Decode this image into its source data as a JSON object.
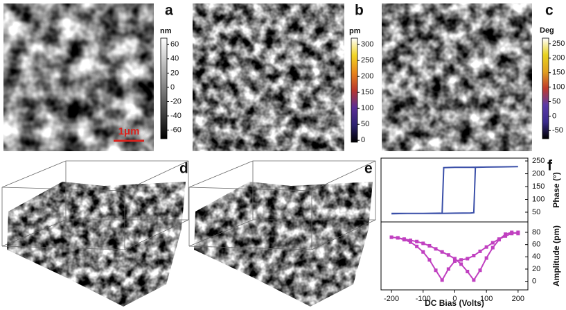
{
  "chart_data": [
    {
      "type": "heatmap",
      "label": "a",
      "colorbar_label": "nm",
      "clim": [
        -72,
        69
      ],
      "cticks": [
        60,
        40,
        20,
        0,
        -20,
        -40,
        -60
      ],
      "colormap": [
        "#000000",
        "#ffffff"
      ],
      "scale_bar": "1μm",
      "scale_color": "#d8231e"
    },
    {
      "type": "heatmap",
      "label": "b",
      "colorbar_label": "pm",
      "clim": [
        -6,
        320
      ],
      "cticks": [
        300,
        250,
        200,
        150,
        100,
        50,
        0
      ],
      "colormap": [
        "#000000",
        "#2c2170",
        "#5a2d96",
        "#b8362c",
        "#e8841a",
        "#f2d522",
        "#ffffff"
      ]
    },
    {
      "type": "heatmap",
      "label": "c",
      "colorbar_label": "Deg",
      "clim": [
        -78,
        269
      ],
      "cticks": [
        250,
        200,
        150,
        100,
        50,
        0,
        -50
      ],
      "colormap": [
        "#000000",
        "#3a2a8c",
        "#5b3aa8",
        "#c0392b",
        "#e0a020",
        "#e8d21e",
        "#ffffff"
      ]
    },
    {
      "type": "surface",
      "label": "d",
      "colormap": [
        "#1a1240",
        "#5a2d96",
        "#b8362c",
        "#e8841a",
        "#f2d522",
        "#ffffff"
      ]
    },
    {
      "type": "surface",
      "label": "e",
      "colormap": [
        "#1a1240",
        "#4a2f9a",
        "#7a5a40",
        "#d8c020",
        "#f0e040",
        "#fff8a0"
      ]
    },
    {
      "type": "line",
      "label": "f",
      "ylabel": "Phase (°)",
      "xlim": [
        -233,
        231
      ],
      "ylim": [
        12,
        261
      ],
      "yticks": [
        50,
        100,
        150,
        200,
        250
      ],
      "series": [
        {
          "color": "#3a4fa8",
          "x": [
            -200,
            -150,
            -100,
            -50,
            0,
            50,
            60,
            65,
            100,
            150,
            200,
            200,
            150,
            100,
            50,
            0,
            -35,
            -40,
            -100,
            -150,
            -200
          ],
          "values": [
            45,
            45,
            45,
            45,
            46,
            47,
            48,
            225,
            226,
            227,
            228,
            228,
            227,
            226,
            225,
            225,
            224,
            46,
            45,
            45,
            44
          ]
        }
      ]
    },
    {
      "type": "line",
      "xlabel": "DC Bias (Volts)",
      "ylabel": "Amplitude (pm)",
      "xlim": [
        -233,
        231
      ],
      "ylim": [
        -14,
        97
      ],
      "yticks": [
        0,
        20,
        40,
        60,
        80
      ],
      "xticks": [
        -200,
        -100,
        0,
        100,
        200
      ],
      "series": [
        {
          "color": "#c040c0",
          "marker": "square",
          "x": [
            -200,
            -180,
            -160,
            -140,
            -120,
            -100,
            -80,
            -60,
            -40,
            -20,
            0,
            20,
            40,
            60,
            80,
            100,
            120,
            140,
            160,
            180,
            200,
            200,
            180,
            160,
            140,
            120,
            100,
            80,
            60,
            40,
            20,
            0,
            -20,
            -40,
            -60,
            -80,
            -100,
            -120,
            -140,
            -160,
            -180,
            -200
          ],
          "values": [
            72,
            71,
            69,
            67,
            65,
            62,
            58,
            53,
            48,
            43,
            37,
            28,
            16,
            2,
            18,
            38,
            55,
            68,
            77,
            80,
            78,
            80,
            78,
            74,
            69,
            63,
            56,
            49,
            42,
            37,
            35,
            33,
            20,
            2,
            18,
            35,
            48,
            57,
            64,
            68,
            71,
            72
          ]
        }
      ]
    }
  ]
}
